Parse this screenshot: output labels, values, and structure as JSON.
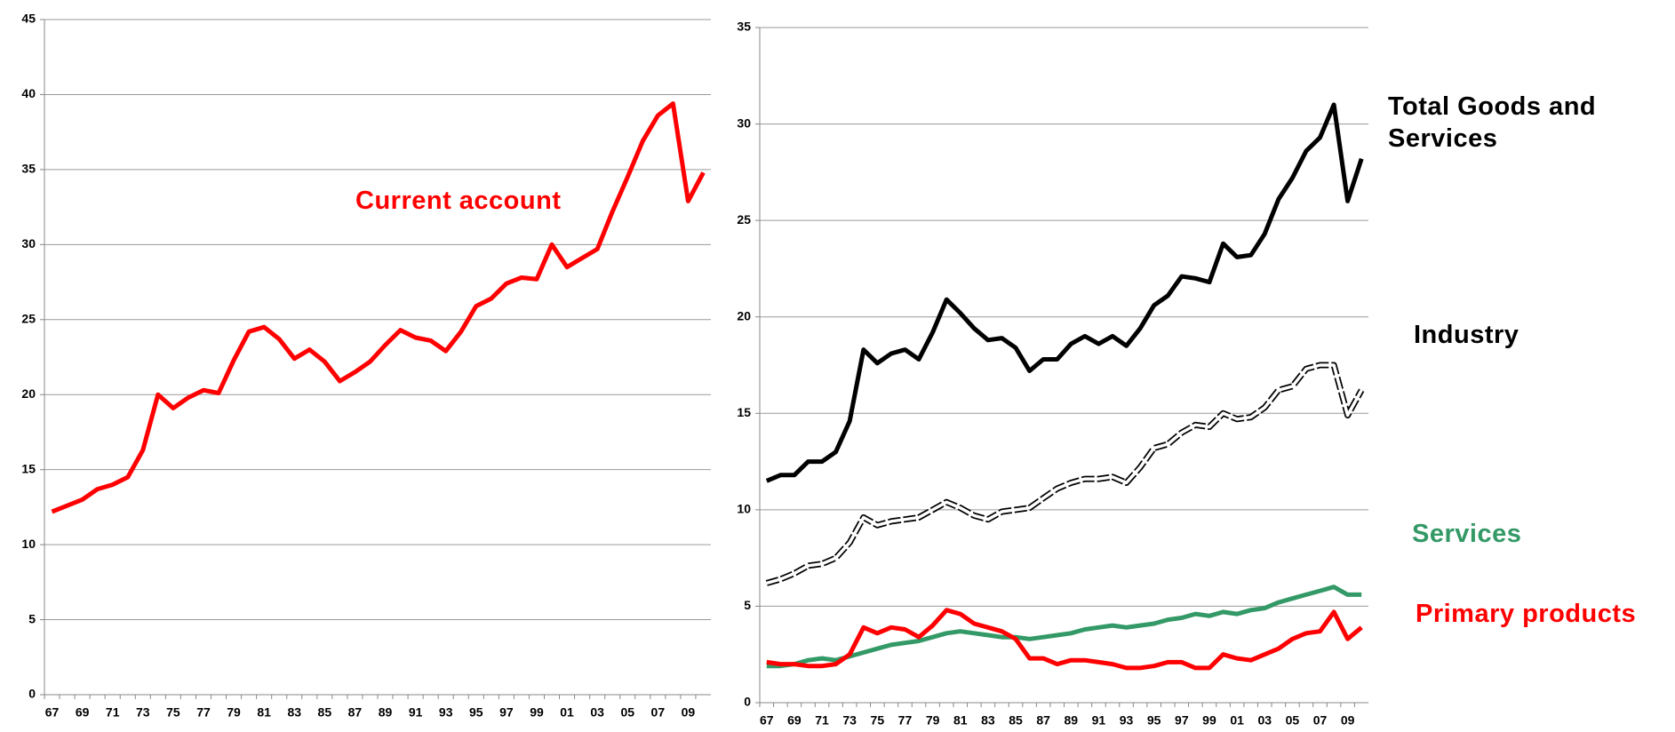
{
  "chart_data": [
    {
      "type": "line",
      "categories": [
        "67",
        null,
        "69",
        null,
        "71",
        null,
        "73",
        null,
        "75",
        null,
        "77",
        null,
        "79",
        null,
        "81",
        null,
        "83",
        null,
        "85",
        null,
        "87",
        null,
        "89",
        null,
        "91",
        null,
        "93",
        null,
        "95",
        null,
        "97",
        null,
        "99",
        null,
        "01",
        null,
        "03",
        null,
        "05",
        null,
        "07",
        null,
        "09",
        null
      ],
      "series": [
        {
          "name": "Current account",
          "color": "#ff0000",
          "values": [
            12.2,
            12.6,
            13.0,
            13.7,
            14.0,
            14.5,
            16.3,
            20.0,
            19.1,
            19.8,
            20.3,
            20.1,
            22.3,
            24.2,
            24.5,
            23.7,
            22.4,
            23.0,
            22.2,
            20.9,
            21.5,
            22.2,
            23.3,
            24.3,
            23.8,
            23.6,
            22.9,
            24.2,
            25.9,
            26.4,
            27.4,
            27.8,
            27.7,
            30.0,
            28.5,
            29.1,
            29.7,
            32.2,
            34.5,
            36.9,
            38.6,
            39.4,
            32.9,
            34.8
          ]
        }
      ],
      "ylim": [
        0,
        45
      ],
      "yticks": [
        0,
        5,
        10,
        15,
        20,
        25,
        30,
        35,
        40,
        45
      ],
      "grid": true
    },
    {
      "type": "line",
      "categories": [
        "67",
        null,
        "69",
        null,
        "71",
        null,
        "73",
        null,
        "75",
        null,
        "77",
        null,
        "79",
        null,
        "81",
        null,
        "83",
        null,
        "85",
        null,
        "87",
        null,
        "89",
        null,
        "91",
        null,
        "93",
        null,
        "95",
        null,
        "97",
        null,
        "99",
        null,
        "01",
        null,
        "03",
        null,
        "05",
        null,
        "07",
        null,
        "09",
        null
      ],
      "series": [
        {
          "name": "Total Goods and Services",
          "color": "#000000",
          "values": [
            11.5,
            11.8,
            11.8,
            12.5,
            12.5,
            13.0,
            14.6,
            18.3,
            17.6,
            18.1,
            18.3,
            17.8,
            19.2,
            20.9,
            20.2,
            19.4,
            18.8,
            18.9,
            18.4,
            17.2,
            17.8,
            17.8,
            18.6,
            19.0,
            18.6,
            19.0,
            18.5,
            19.4,
            20.6,
            21.1,
            22.1,
            22.0,
            21.8,
            23.8,
            23.1,
            23.2,
            24.3,
            26.1,
            27.2,
            28.6,
            29.3,
            31.0,
            26.0,
            28.2
          ]
        },
        {
          "name": "Industry",
          "color": "#000000",
          "dashed": true,
          "values": [
            6.2,
            6.4,
            6.7,
            7.1,
            7.2,
            7.5,
            8.3,
            9.6,
            9.2,
            9.4,
            9.5,
            9.6,
            10.0,
            10.4,
            10.1,
            9.7,
            9.5,
            9.9,
            10.0,
            10.1,
            10.6,
            11.1,
            11.4,
            11.6,
            11.6,
            11.7,
            11.4,
            12.2,
            13.2,
            13.4,
            14.0,
            14.4,
            14.3,
            15.0,
            14.7,
            14.8,
            15.3,
            16.2,
            16.4,
            17.3,
            17.5,
            17.5,
            14.9,
            16.2
          ]
        },
        {
          "name": "Services",
          "color": "#339966",
          "values": [
            1.9,
            1.9,
            2.0,
            2.2,
            2.3,
            2.2,
            2.4,
            2.6,
            2.8,
            3.0,
            3.1,
            3.2,
            3.4,
            3.6,
            3.7,
            3.6,
            3.5,
            3.4,
            3.4,
            3.3,
            3.4,
            3.5,
            3.6,
            3.8,
            3.9,
            4.0,
            3.9,
            4.0,
            4.1,
            4.3,
            4.4,
            4.6,
            4.5,
            4.7,
            4.6,
            4.8,
            4.9,
            5.2,
            5.4,
            5.6,
            5.8,
            6.0,
            5.6,
            5.6
          ]
        },
        {
          "name": "Primary products",
          "color": "#ff0000",
          "values": [
            2.1,
            2.0,
            2.0,
            1.9,
            1.9,
            2.0,
            2.5,
            3.9,
            3.6,
            3.9,
            3.8,
            3.4,
            4.0,
            4.8,
            4.6,
            4.1,
            3.9,
            3.7,
            3.3,
            2.3,
            2.3,
            2.0,
            2.2,
            2.2,
            2.1,
            2.0,
            1.8,
            1.8,
            1.9,
            2.1,
            2.1,
            1.8,
            1.8,
            2.5,
            2.3,
            2.2,
            2.5,
            2.8,
            3.3,
            3.6,
            3.7,
            4.7,
            3.3,
            3.9
          ]
        }
      ],
      "ylim": [
        0,
        35
      ],
      "yticks": [
        0,
        5,
        10,
        15,
        20,
        25,
        30,
        35
      ],
      "grid": true
    }
  ]
}
